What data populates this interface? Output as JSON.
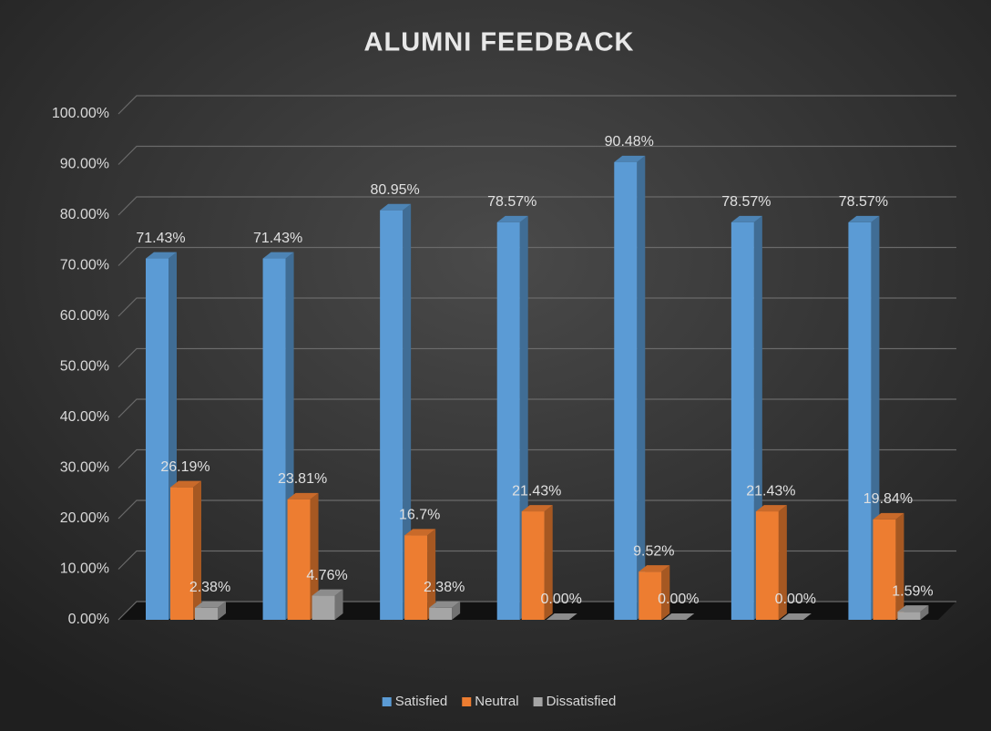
{
  "chart_data": {
    "type": "bar3d",
    "title": "ALUMNI FEEDBACK",
    "categories": [
      null,
      null,
      null,
      null,
      null,
      null,
      null
    ],
    "series": [
      {
        "name": "Satisfied",
        "color": "#5b9bd5",
        "values": [
          71.43,
          71.43,
          80.95,
          78.57,
          90.48,
          78.57,
          78.57
        ],
        "value_labels": [
          "71.43%",
          "71.43%",
          "80.95%",
          "78.57%",
          "90.48%",
          "78.57%",
          "78.57%"
        ]
      },
      {
        "name": "Neutral",
        "color": "#ed7d31",
        "values": [
          26.19,
          23.81,
          16.7,
          21.43,
          9.52,
          21.43,
          19.84
        ],
        "value_labels": [
          "26.19%",
          "23.81%",
          "16.7%",
          "21.43%",
          "9.52%",
          "21.43%",
          "19.84%"
        ]
      },
      {
        "name": "Dissatisfied",
        "color": "#a5a5a5",
        "values": [
          2.38,
          4.76,
          2.38,
          0,
          0,
          0,
          1.59
        ],
        "value_labels": [
          "2.38%",
          "4.76%",
          "2.38%",
          "0.00%",
          "0.00%",
          "0.00%",
          "1.59%"
        ]
      }
    ],
    "ylim": [
      0,
      100
    ],
    "yticks": [
      {
        "value": 0,
        "label": "0.00%"
      },
      {
        "value": 10,
        "label": "10.00%"
      },
      {
        "value": 20,
        "label": "20.00%"
      },
      {
        "value": 30,
        "label": "30.00%"
      },
      {
        "value": 40,
        "label": "40.00%"
      },
      {
        "value": 50,
        "label": "50.00%"
      },
      {
        "value": 60,
        "label": "60.00%"
      },
      {
        "value": 70,
        "label": "70.00%"
      },
      {
        "value": 80,
        "label": "80.00%"
      },
      {
        "value": 90,
        "label": "90.00%"
      },
      {
        "value": 100,
        "label": "100.00%"
      }
    ],
    "grid": true,
    "legend": "bottom"
  }
}
